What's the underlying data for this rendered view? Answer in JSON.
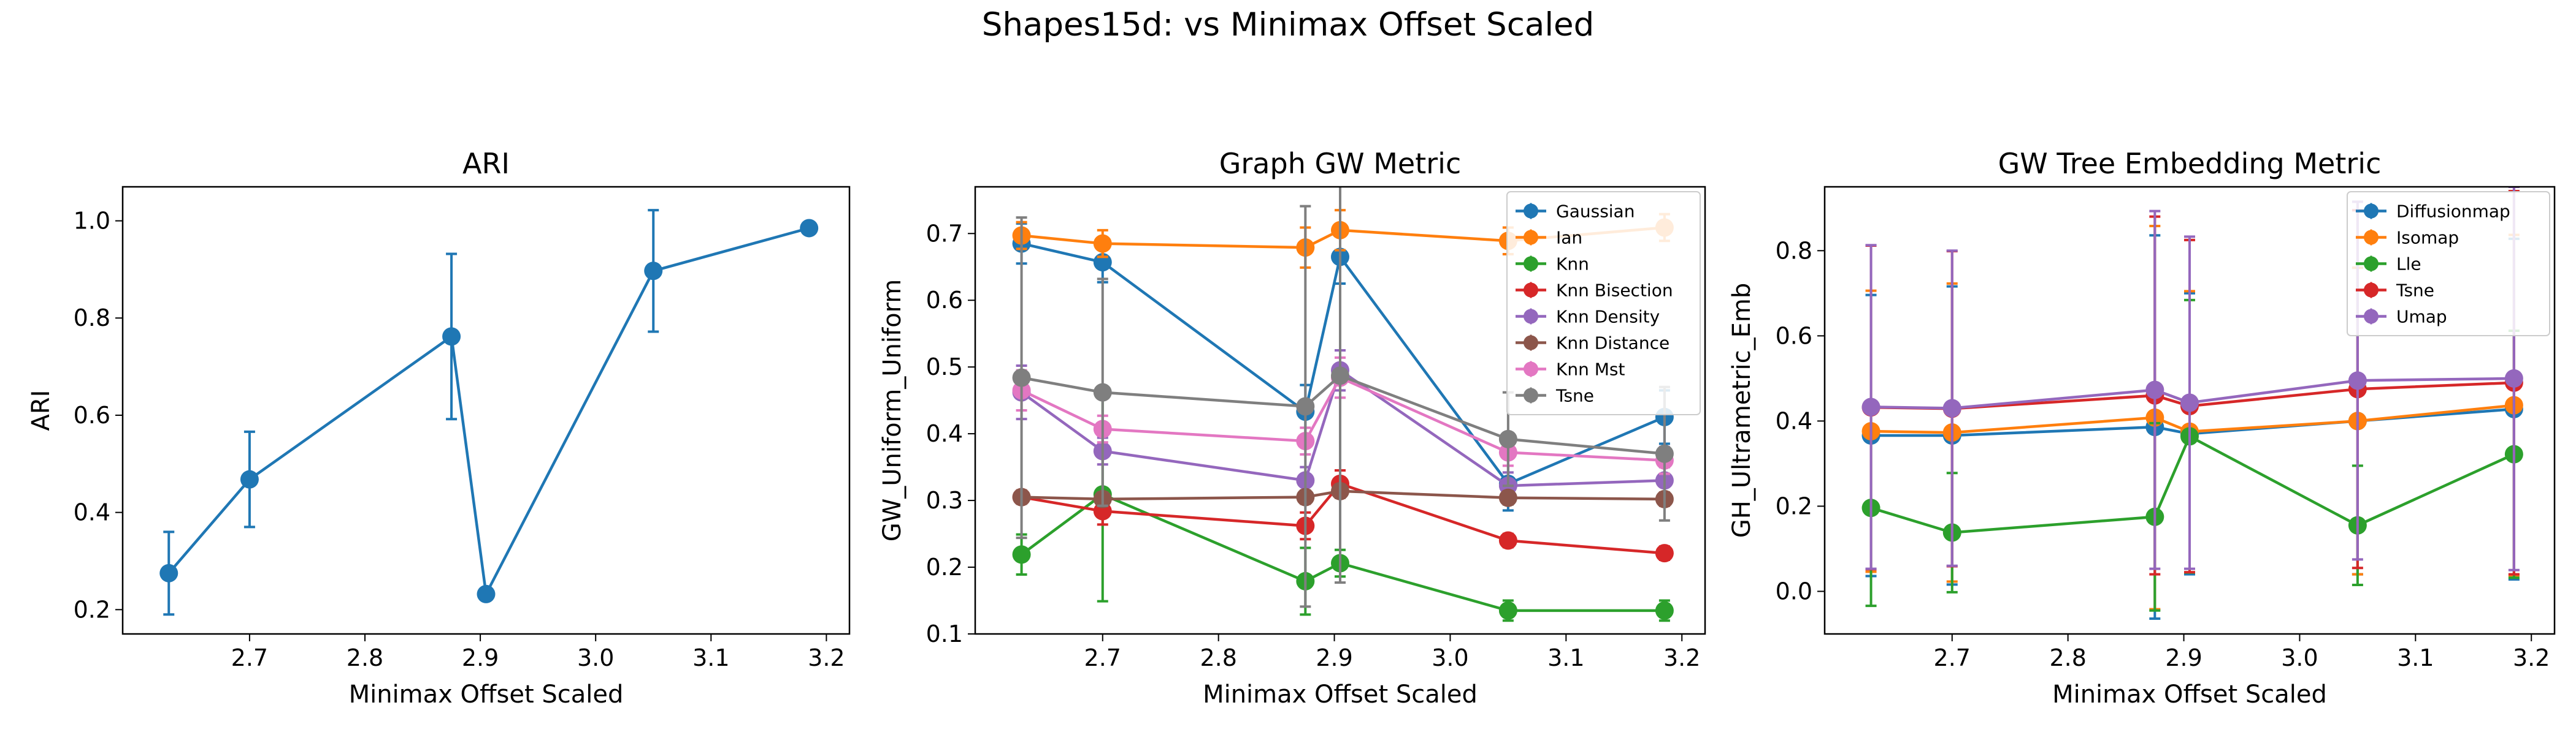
{
  "figure": {
    "title": "Shapes15d: vs Minimax Offset Scaled"
  },
  "chart_data": [
    {
      "type": "line",
      "title": "ARI",
      "xlabel": "Minimax Offset Scaled",
      "ylabel": "ARI",
      "xlim": [
        2.59,
        3.22
      ],
      "ylim": [
        0.15,
        1.07
      ],
      "xticks": [
        "2.7",
        "2.8",
        "2.9",
        "3.0",
        "3.1",
        "3.2"
      ],
      "yticks": [
        "0.2",
        "0.4",
        "0.6",
        "0.8",
        "1.0"
      ],
      "legend": null,
      "series": [
        {
          "color": "#1f77b4",
          "x": [
            2.63,
            2.7,
            2.875,
            2.905,
            3.05,
            3.185
          ],
          "y": [
            0.275,
            0.468,
            0.762,
            0.232,
            0.897,
            0.985
          ],
          "err": [
            0.085,
            0.098,
            0.17,
            0.0,
            0.125,
            0.0
          ]
        }
      ]
    },
    {
      "type": "line",
      "title": "Graph GW Metric",
      "xlabel": "Minimax Offset Scaled",
      "ylabel": "GW_Uniform_Uniform",
      "xlim": [
        2.59,
        3.22
      ],
      "ylim": [
        0.1,
        0.77
      ],
      "xticks": [
        "2.7",
        "2.8",
        "2.9",
        "3.0",
        "3.1",
        "3.2"
      ],
      "yticks": [
        "0.1",
        "0.2",
        "0.3",
        "0.4",
        "0.5",
        "0.6",
        "0.7"
      ],
      "legend": "top-right",
      "series": [
        {
          "name": "Gaussian",
          "color": "#1f77b4",
          "x": [
            2.63,
            2.7,
            2.875,
            2.905,
            3.05,
            3.185
          ],
          "y": [
            0.685,
            0.657,
            0.433,
            0.665,
            0.325,
            0.425
          ],
          "err": [
            0.03,
            0.03,
            0.04,
            0.04,
            0.04,
            0.04
          ]
        },
        {
          "name": "Ian",
          "color": "#ff7f0e",
          "x": [
            2.63,
            2.7,
            2.875,
            2.905,
            3.05,
            3.185
          ],
          "y": [
            0.697,
            0.685,
            0.679,
            0.705,
            0.689,
            0.709
          ],
          "err": [
            0.02,
            0.02,
            0.03,
            0.03,
            0.02,
            0.02
          ]
        },
        {
          "name": "Knn",
          "color": "#2ca02c",
          "x": [
            2.63,
            2.7,
            2.875,
            2.905,
            3.05,
            3.185
          ],
          "y": [
            0.219,
            0.309,
            0.179,
            0.206,
            0.135,
            0.135
          ],
          "err": [
            0.03,
            0.16,
            0.05,
            0.02,
            0.015,
            0.015
          ]
        },
        {
          "name": "Knn Bisection",
          "color": "#d62728",
          "x": [
            2.63,
            2.7,
            2.875,
            2.905,
            3.05,
            3.185
          ],
          "y": [
            0.305,
            0.284,
            0.262,
            0.325,
            0.24,
            0.221
          ],
          "err": [
            0.01,
            0.02,
            0.02,
            0.02,
            0.01,
            0.01
          ]
        },
        {
          "name": "Knn Density",
          "color": "#9467bd",
          "x": [
            2.63,
            2.7,
            2.875,
            2.905,
            3.05,
            3.185
          ],
          "y": [
            0.462,
            0.374,
            0.33,
            0.495,
            0.322,
            0.33
          ],
          "err": [
            0.04,
            0.02,
            0.02,
            0.03,
            0.02,
            0.02
          ]
        },
        {
          "name": "Knn Distance",
          "color": "#8c564b",
          "x": [
            2.63,
            2.7,
            2.875,
            2.905,
            3.05,
            3.185
          ],
          "y": [
            0.305,
            0.302,
            0.305,
            0.314,
            0.304,
            0.302
          ],
          "err": [
            0.01,
            0.01,
            0.01,
            0.01,
            0.01,
            0.01
          ]
        },
        {
          "name": "Knn Mst",
          "color": "#e377c2",
          "x": [
            2.63,
            2.7,
            2.875,
            2.905,
            3.05,
            3.185
          ],
          "y": [
            0.465,
            0.407,
            0.389,
            0.484,
            0.372,
            0.36
          ],
          "err": [
            0.03,
            0.02,
            0.02,
            0.03,
            0.02,
            0.02
          ]
        },
        {
          "name": "Tsne",
          "color": "#7f7f7f",
          "x": [
            2.63,
            2.7,
            2.875,
            2.905,
            3.05,
            3.185
          ],
          "y": [
            0.484,
            0.462,
            0.441,
            0.487,
            0.392,
            0.37
          ],
          "err": [
            0.24,
            0.17,
            0.3,
            0.31,
            0.07,
            0.1
          ]
        }
      ]
    },
    {
      "type": "line",
      "title": "GW Tree Embedding Metric",
      "xlabel": "Minimax Offset Scaled",
      "ylabel": "GH_Ultrametric_Emb",
      "xlim": [
        2.59,
        3.22
      ],
      "ylim": [
        -0.1,
        0.95
      ],
      "xticks": [
        "2.7",
        "2.8",
        "2.9",
        "3.0",
        "3.1",
        "3.2"
      ],
      "yticks": [
        "0.0",
        "0.2",
        "0.4",
        "0.6",
        "0.8"
      ],
      "legend": "top-right",
      "series": [
        {
          "name": "Diffusionmap",
          "color": "#1f77b4",
          "x": [
            2.63,
            2.7,
            2.875,
            2.905,
            3.05,
            3.185
          ],
          "y": [
            0.366,
            0.366,
            0.386,
            0.37,
            0.4,
            0.428
          ],
          "err": [
            0.33,
            0.35,
            0.45,
            0.33,
            0.36,
            0.4
          ]
        },
        {
          "name": "Isomap",
          "color": "#ff7f0e",
          "x": [
            2.63,
            2.7,
            2.875,
            2.905,
            3.05,
            3.185
          ],
          "y": [
            0.376,
            0.373,
            0.408,
            0.375,
            0.4,
            0.437
          ],
          "err": [
            0.33,
            0.35,
            0.45,
            0.33,
            0.36,
            0.4
          ]
        },
        {
          "name": "Lle",
          "color": "#2ca02c",
          "x": [
            2.63,
            2.7,
            2.875,
            2.905,
            3.05,
            3.185
          ],
          "y": [
            0.196,
            0.138,
            0.175,
            0.364,
            0.155,
            0.322
          ],
          "err": [
            0.23,
            0.14,
            0.22,
            0.32,
            0.14,
            0.29
          ]
        },
        {
          "name": "Tsne",
          "color": "#d62728",
          "x": [
            2.63,
            2.7,
            2.875,
            2.905,
            3.05,
            3.185
          ],
          "y": [
            0.432,
            0.429,
            0.46,
            0.435,
            0.475,
            0.49
          ],
          "err": [
            0.38,
            0.37,
            0.42,
            0.39,
            0.42,
            0.45
          ]
        },
        {
          "name": "Umap",
          "color": "#9467bd",
          "x": [
            2.63,
            2.7,
            2.875,
            2.905,
            3.05,
            3.185
          ],
          "y": [
            0.433,
            0.43,
            0.473,
            0.443,
            0.495,
            0.5
          ],
          "err": [
            0.38,
            0.37,
            0.42,
            0.39,
            0.42,
            0.45
          ]
        }
      ]
    }
  ]
}
